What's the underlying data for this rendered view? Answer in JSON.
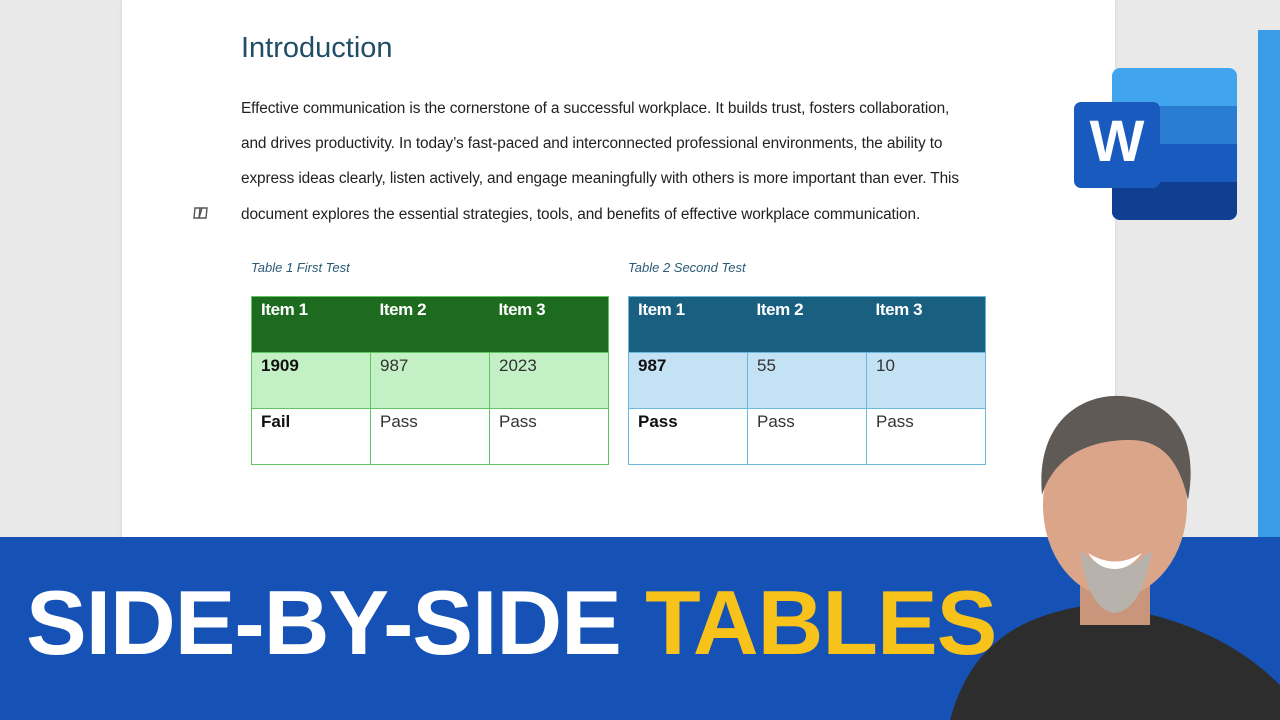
{
  "document": {
    "heading": "Introduction",
    "paragraph": [
      "Effective communication is the cornerstone of a successful workplace. It builds trust, fosters collaboration,",
      "and drives productivity. In today’s fast-paced and interconnected professional environments, the ability to",
      "express ideas clearly, listen actively, and engage meaningfully with others is more important than ever. This",
      "document explores the essential strategies, tools, and benefits of effective workplace communication."
    ],
    "tables": [
      {
        "caption": "Table 1 First Test",
        "header": [
          "Item 1",
          "Item 2",
          "Item 3"
        ],
        "rows": [
          [
            1909,
            987,
            2023
          ],
          [
            "Fail",
            "Pass",
            "Pass"
          ]
        ],
        "header_color": "#1d6b1f",
        "band_color": "#c4f0c6",
        "border_color": "#5fc75f"
      },
      {
        "caption": "Table 2 Second Test",
        "header": [
          "Item 1",
          "Item 2",
          "Item 3"
        ],
        "rows": [
          [
            987,
            55,
            10
          ],
          [
            "Pass",
            "Pass",
            "Pass"
          ]
        ],
        "header_color": "#195f80",
        "band_color": "#c3e2f3",
        "border_color": "#6cb7dc"
      }
    ]
  },
  "banner": {
    "title": "SIDE-BY-SIDE",
    "accent": "TABLES"
  },
  "app_icon": {
    "letter": "W"
  }
}
